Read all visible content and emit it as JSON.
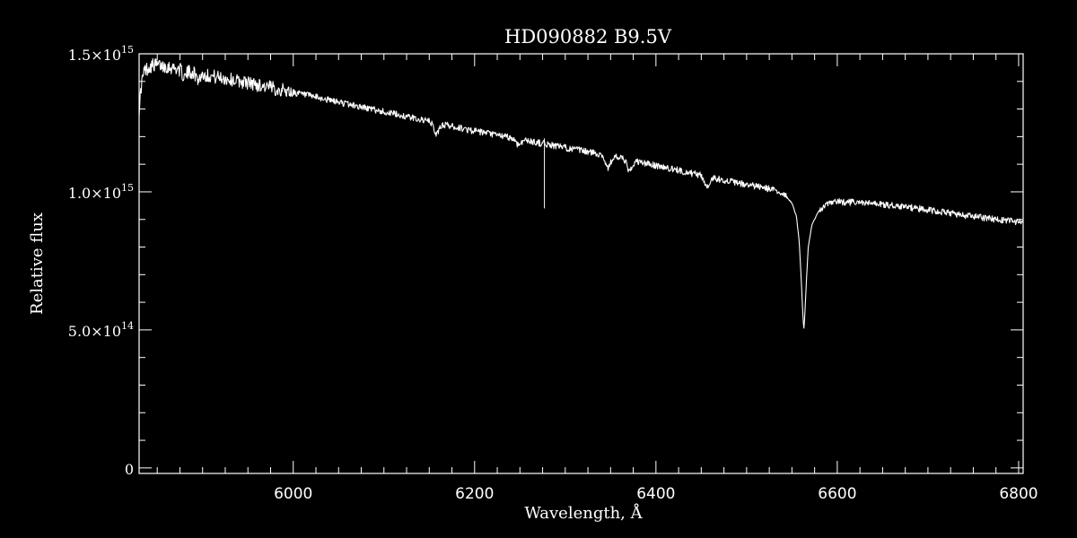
{
  "chart_data": {
    "type": "line",
    "title": "HD090882   B9.5V",
    "xlabel": "Wavelength, Å",
    "ylabel": "Relative flux",
    "xlim": [
      5830,
      6805
    ],
    "ylim": [
      -20000000000000,
      1500000000000000
    ],
    "x_ticks": [
      {
        "value": 6000,
        "label": "6000"
      },
      {
        "value": 6200,
        "label": "6200"
      },
      {
        "value": 6400,
        "label": "6400"
      },
      {
        "value": 6600,
        "label": "6600"
      },
      {
        "value": 6800,
        "label": "6800"
      }
    ],
    "y_ticks": [
      {
        "value": 0,
        "mantissa": "0",
        "exponent": ""
      },
      {
        "value": 500000000000000,
        "mantissa": "5.0×10",
        "exponent": "14"
      },
      {
        "value": 1000000000000000,
        "mantissa": "1.0×10",
        "exponent": "15"
      },
      {
        "value": 1500000000000000,
        "mantissa": "1.5×10",
        "exponent": "15"
      }
    ],
    "x_minor_step": 25,
    "y_minor_step": 100000000000000,
    "grid": false,
    "colors": {
      "background": "#000000",
      "foreground": "#ffffff"
    },
    "series": [
      {
        "continuum": [
          [
            5830,
            1300000000000000.0
          ],
          [
            5833,
            1400000000000000.0
          ],
          [
            5836,
            1440000000000000.0
          ],
          [
            5845,
            1460000000000000.0
          ],
          [
            5860,
            1455000000000000.0
          ],
          [
            5880,
            1440000000000000.0
          ],
          [
            5900,
            1425000000000000.0
          ],
          [
            5950,
            1395000000000000.0
          ],
          [
            6000,
            1360000000000000.0
          ],
          [
            6050,
            1325000000000000.0
          ],
          [
            6100,
            1290000000000000.0
          ],
          [
            6150,
            1255000000000000.0
          ],
          [
            6200,
            1220000000000000.0
          ],
          [
            6250,
            1190000000000000.0
          ],
          [
            6300,
            1160000000000000.0
          ],
          [
            6350,
            1130000000000000.0
          ],
          [
            6400,
            1095000000000000.0
          ],
          [
            6450,
            1060000000000000.0
          ],
          [
            6500,
            1025000000000000.0
          ],
          [
            6520,
            1015000000000000.0
          ],
          [
            6540,
            995000000000000.0
          ],
          [
            6550,
            960000000000000.0
          ],
          [
            6555,
            910000000000000.0
          ],
          [
            6558,
            820000000000000.0
          ],
          [
            6560,
            700000000000000.0
          ],
          [
            6562,
            560000000000000.0
          ],
          [
            6563,
            500000000000000.0
          ],
          [
            6564,
            540000000000000.0
          ],
          [
            6566,
            680000000000000.0
          ],
          [
            6568,
            800000000000000.0
          ],
          [
            6572,
            880000000000000.0
          ],
          [
            6580,
            935000000000000.0
          ],
          [
            6590,
            955000000000000.0
          ],
          [
            6600,
            965000000000000.0
          ],
          [
            6650,
            955000000000000.0
          ],
          [
            6700,
            935000000000000.0
          ],
          [
            6750,
            910000000000000.0
          ],
          [
            6805,
            890000000000000.0
          ]
        ],
        "absorption_lines": [
          {
            "center": 5880,
            "depth": 25000000000000.0,
            "width": 3
          },
          {
            "center": 5895,
            "depth": 20000000000000.0,
            "width": 3
          },
          {
            "center": 6158,
            "depth": 40000000000000.0,
            "width": 4
          },
          {
            "center": 6248,
            "depth": 20000000000000.0,
            "width": 4
          },
          {
            "center": 6347,
            "depth": 45000000000000.0,
            "width": 4
          },
          {
            "center": 6371,
            "depth": 40000000000000.0,
            "width": 4
          },
          {
            "center": 6456,
            "depth": 35000000000000.0,
            "width": 4
          }
        ],
        "spikes": [
          {
            "x": 6277,
            "y": 940000000000000.0
          }
        ],
        "noise_amplitude": 12000000000000.0,
        "noise_amplitude_blue": 25000000000000.0,
        "sample_step": 0.6
      }
    ]
  }
}
